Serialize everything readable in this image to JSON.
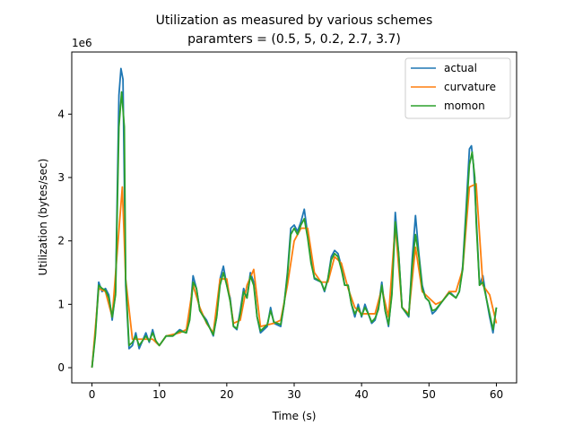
{
  "chart_data": {
    "type": "line",
    "title": "Utilization as measured by various schemes",
    "subtitle": "paramters = (0.5, 5, 0.2, 2.7, 3.7)",
    "xlabel": "Time (s)",
    "ylabel": "Utilization (bytes/sec)",
    "y_multiplier_label": "1e6",
    "xlim": [
      -3,
      63
    ],
    "ylim": [
      -0.24,
      4.98
    ],
    "x_ticks": [
      0,
      10,
      20,
      30,
      40,
      50,
      60
    ],
    "y_ticks": [
      0,
      1,
      2,
      3,
      4
    ],
    "grid": false,
    "legend_position": "top-right",
    "series": [
      {
        "name": "actual",
        "color": "#1f77b4",
        "points": [
          [
            0,
            0
          ],
          [
            0.5,
            0.55
          ],
          [
            1,
            1.35
          ],
          [
            1.5,
            1.2
          ],
          [
            2,
            1.25
          ],
          [
            2.5,
            1.15
          ],
          [
            3,
            0.75
          ],
          [
            3.5,
            1.2
          ],
          [
            4,
            4.3
          ],
          [
            4.3,
            4.72
          ],
          [
            4.6,
            4.55
          ],
          [
            5,
            1.3
          ],
          [
            5.5,
            0.3
          ],
          [
            6,
            0.35
          ],
          [
            6.5,
            0.55
          ],
          [
            7,
            0.3
          ],
          [
            8,
            0.55
          ],
          [
            8.5,
            0.4
          ],
          [
            9,
            0.6
          ],
          [
            9.5,
            0.4
          ],
          [
            10,
            0.35
          ],
          [
            11,
            0.5
          ],
          [
            12,
            0.5
          ],
          [
            13,
            0.6
          ],
          [
            14,
            0.55
          ],
          [
            14.5,
            0.8
          ],
          [
            15,
            1.45
          ],
          [
            15.5,
            1.25
          ],
          [
            16,
            0.9
          ],
          [
            17,
            0.75
          ],
          [
            18,
            0.5
          ],
          [
            18.5,
            0.8
          ],
          [
            19,
            1.4
          ],
          [
            19.5,
            1.6
          ],
          [
            20,
            1.3
          ],
          [
            20.5,
            1.1
          ],
          [
            21,
            0.65
          ],
          [
            21.5,
            0.6
          ],
          [
            22,
            0.9
          ],
          [
            22.5,
            1.25
          ],
          [
            23,
            1.1
          ],
          [
            23.5,
            1.5
          ],
          [
            24,
            1.35
          ],
          [
            24.5,
            0.8
          ],
          [
            25,
            0.55
          ],
          [
            26,
            0.65
          ],
          [
            26.5,
            0.95
          ],
          [
            27,
            0.7
          ],
          [
            28,
            0.65
          ],
          [
            28.5,
            1.0
          ],
          [
            29,
            1.5
          ],
          [
            29.5,
            2.2
          ],
          [
            30,
            2.25
          ],
          [
            30.5,
            2.15
          ],
          [
            31,
            2.3
          ],
          [
            31.5,
            2.5
          ],
          [
            32,
            2.1
          ],
          [
            32.5,
            1.7
          ],
          [
            33,
            1.4
          ],
          [
            34,
            1.35
          ],
          [
            34.5,
            1.2
          ],
          [
            35,
            1.4
          ],
          [
            35.5,
            1.75
          ],
          [
            36,
            1.85
          ],
          [
            36.5,
            1.8
          ],
          [
            37,
            1.6
          ],
          [
            37.5,
            1.3
          ],
          [
            38,
            1.3
          ],
          [
            38.5,
            1.0
          ],
          [
            39,
            0.8
          ],
          [
            39.5,
            1.0
          ],
          [
            40,
            0.8
          ],
          [
            40.5,
            1.0
          ],
          [
            41,
            0.85
          ],
          [
            41.5,
            0.7
          ],
          [
            42,
            0.75
          ],
          [
            42.5,
            0.95
          ],
          [
            43,
            1.35
          ],
          [
            43.5,
            0.9
          ],
          [
            44,
            0.65
          ],
          [
            44.5,
            1.2
          ],
          [
            45,
            2.45
          ],
          [
            45.5,
            1.8
          ],
          [
            46,
            0.95
          ],
          [
            47,
            0.8
          ],
          [
            47.5,
            1.7
          ],
          [
            48,
            2.4
          ],
          [
            48.5,
            1.8
          ],
          [
            49,
            1.3
          ],
          [
            49.5,
            1.1
          ],
          [
            50,
            1.05
          ],
          [
            50.5,
            0.85
          ],
          [
            51,
            0.9
          ],
          [
            52,
            1.05
          ],
          [
            53,
            1.2
          ],
          [
            54,
            1.1
          ],
          [
            54.5,
            1.2
          ],
          [
            55,
            1.6
          ],
          [
            55.5,
            2.5
          ],
          [
            56,
            3.45
          ],
          [
            56.3,
            3.5
          ],
          [
            56.6,
            3.2
          ],
          [
            57,
            2.4
          ],
          [
            57.5,
            1.3
          ],
          [
            58,
            1.45
          ],
          [
            58.5,
            1.1
          ],
          [
            59,
            0.8
          ],
          [
            59.5,
            0.55
          ],
          [
            60,
            0.95
          ]
        ]
      },
      {
        "name": "curvature",
        "color": "#ff7f0e",
        "points": [
          [
            0,
            0
          ],
          [
            1,
            1.25
          ],
          [
            2,
            1.2
          ],
          [
            3,
            0.8
          ],
          [
            4.5,
            2.85
          ],
          [
            5,
            1.4
          ],
          [
            6,
            0.45
          ],
          [
            7,
            0.45
          ],
          [
            8,
            0.45
          ],
          [
            9,
            0.45
          ],
          [
            10,
            0.35
          ],
          [
            11,
            0.5
          ],
          [
            13,
            0.55
          ],
          [
            14,
            0.6
          ],
          [
            15,
            1.3
          ],
          [
            16,
            0.95
          ],
          [
            17,
            0.7
          ],
          [
            18,
            0.55
          ],
          [
            19,
            1.4
          ],
          [
            20,
            1.4
          ],
          [
            21,
            0.7
          ],
          [
            22,
            0.75
          ],
          [
            23,
            1.3
          ],
          [
            24,
            1.55
          ],
          [
            25,
            0.65
          ],
          [
            27,
            0.7
          ],
          [
            28,
            0.75
          ],
          [
            29,
            1.3
          ],
          [
            30,
            2.0
          ],
          [
            31,
            2.2
          ],
          [
            32,
            2.2
          ],
          [
            33,
            1.5
          ],
          [
            34,
            1.35
          ],
          [
            35,
            1.35
          ],
          [
            36,
            1.75
          ],
          [
            37,
            1.65
          ],
          [
            38,
            1.25
          ],
          [
            39,
            0.95
          ],
          [
            40,
            0.85
          ],
          [
            41,
            0.85
          ],
          [
            42,
            0.85
          ],
          [
            43,
            1.25
          ],
          [
            44,
            0.8
          ],
          [
            45,
            2.25
          ],
          [
            46,
            0.95
          ],
          [
            47,
            0.85
          ],
          [
            48,
            1.9
          ],
          [
            49,
            1.2
          ],
          [
            50,
            1.1
          ],
          [
            51,
            1.0
          ],
          [
            52,
            1.05
          ],
          [
            53,
            1.2
          ],
          [
            54,
            1.2
          ],
          [
            55,
            1.55
          ],
          [
            56,
            2.85
          ],
          [
            57,
            2.9
          ],
          [
            58,
            1.3
          ],
          [
            59,
            1.15
          ],
          [
            60,
            0.7
          ]
        ]
      },
      {
        "name": "momon",
        "color": "#2ca02c",
        "points": [
          [
            0,
            0
          ],
          [
            0.5,
            0.5
          ],
          [
            1,
            1.3
          ],
          [
            1.5,
            1.25
          ],
          [
            2,
            1.22
          ],
          [
            2.5,
            1.1
          ],
          [
            3,
            0.8
          ],
          [
            3.5,
            1.15
          ],
          [
            4,
            3.8
          ],
          [
            4.4,
            4.35
          ],
          [
            4.8,
            3.8
          ],
          [
            5,
            1.4
          ],
          [
            5.5,
            0.35
          ],
          [
            6,
            0.4
          ],
          [
            6.5,
            0.5
          ],
          [
            7,
            0.35
          ],
          [
            8,
            0.5
          ],
          [
            8.5,
            0.42
          ],
          [
            9,
            0.55
          ],
          [
            9.5,
            0.42
          ],
          [
            10,
            0.35
          ],
          [
            11,
            0.5
          ],
          [
            12,
            0.5
          ],
          [
            13,
            0.58
          ],
          [
            14,
            0.55
          ],
          [
            14.5,
            0.75
          ],
          [
            15,
            1.35
          ],
          [
            15.5,
            1.25
          ],
          [
            16,
            0.9
          ],
          [
            17,
            0.72
          ],
          [
            18,
            0.52
          ],
          [
            18.5,
            0.8
          ],
          [
            19,
            1.3
          ],
          [
            19.5,
            1.5
          ],
          [
            20,
            1.3
          ],
          [
            20.5,
            1.05
          ],
          [
            21,
            0.65
          ],
          [
            21.5,
            0.62
          ],
          [
            22,
            0.85
          ],
          [
            22.5,
            1.2
          ],
          [
            23,
            1.1
          ],
          [
            23.5,
            1.45
          ],
          [
            24,
            1.3
          ],
          [
            24.5,
            0.8
          ],
          [
            25,
            0.58
          ],
          [
            26,
            0.68
          ],
          [
            26.5,
            0.9
          ],
          [
            27,
            0.72
          ],
          [
            28,
            0.68
          ],
          [
            28.5,
            1.0
          ],
          [
            29,
            1.45
          ],
          [
            29.5,
            2.1
          ],
          [
            30,
            2.2
          ],
          [
            30.5,
            2.1
          ],
          [
            31,
            2.25
          ],
          [
            31.5,
            2.35
          ],
          [
            32,
            2.05
          ],
          [
            32.5,
            1.65
          ],
          [
            33,
            1.42
          ],
          [
            34,
            1.35
          ],
          [
            34.5,
            1.22
          ],
          [
            35,
            1.4
          ],
          [
            35.5,
            1.7
          ],
          [
            36,
            1.8
          ],
          [
            36.5,
            1.75
          ],
          [
            37,
            1.55
          ],
          [
            37.5,
            1.3
          ],
          [
            38,
            1.3
          ],
          [
            38.5,
            1.0
          ],
          [
            39,
            0.85
          ],
          [
            39.5,
            0.95
          ],
          [
            40,
            0.82
          ],
          [
            40.5,
            0.95
          ],
          [
            41,
            0.85
          ],
          [
            41.5,
            0.72
          ],
          [
            42,
            0.78
          ],
          [
            42.5,
            0.92
          ],
          [
            43,
            1.3
          ],
          [
            43.5,
            0.9
          ],
          [
            44,
            0.68
          ],
          [
            44.5,
            1.15
          ],
          [
            45,
            2.3
          ],
          [
            45.5,
            1.8
          ],
          [
            46,
            0.95
          ],
          [
            47,
            0.82
          ],
          [
            47.5,
            1.6
          ],
          [
            48,
            2.1
          ],
          [
            48.5,
            1.75
          ],
          [
            49,
            1.25
          ],
          [
            49.5,
            1.1
          ],
          [
            50,
            1.05
          ],
          [
            50.5,
            0.9
          ],
          [
            51,
            0.92
          ],
          [
            52,
            1.05
          ],
          [
            53,
            1.18
          ],
          [
            54,
            1.1
          ],
          [
            54.5,
            1.2
          ],
          [
            55,
            1.55
          ],
          [
            55.5,
            2.4
          ],
          [
            56,
            3.2
          ],
          [
            56.4,
            3.4
          ],
          [
            56.8,
            3.0
          ],
          [
            57,
            2.3
          ],
          [
            57.5,
            1.3
          ],
          [
            58,
            1.35
          ],
          [
            58.5,
            1.1
          ],
          [
            59,
            0.85
          ],
          [
            59.5,
            0.6
          ],
          [
            60,
            0.95
          ]
        ]
      }
    ]
  }
}
